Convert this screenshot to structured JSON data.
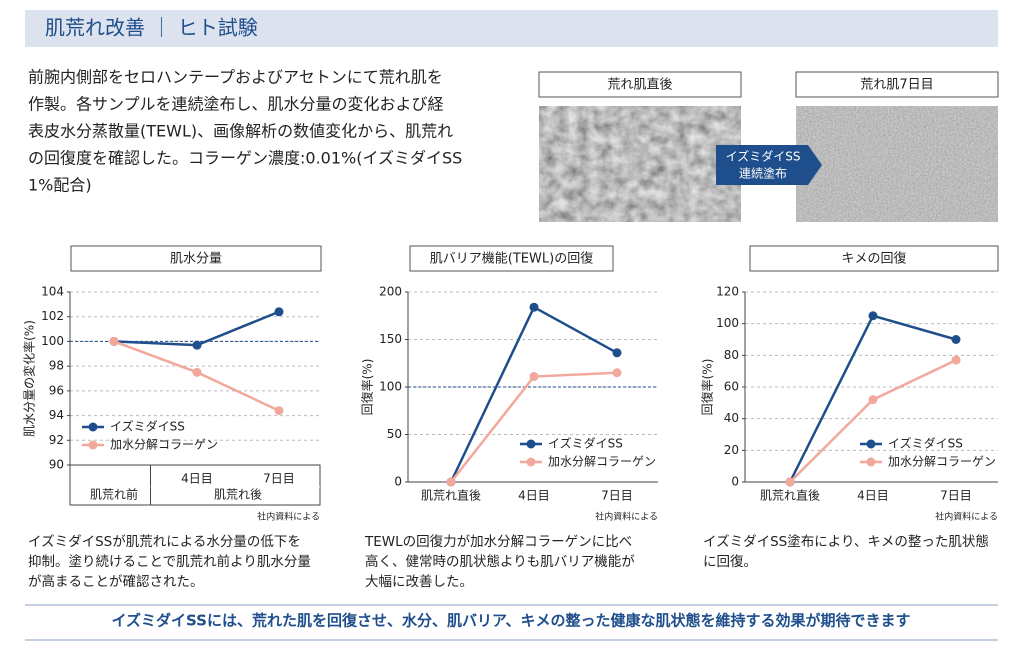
{
  "header": {
    "title": "肌荒れ改善 ｜ ヒト試験"
  },
  "intro": [
    "前腕内側部をセロハンテープおよびアセトンにて荒れ肌を",
    "作製。各サンプルを連続塗布し、肌水分量の変化および経",
    "表皮水分蒸散量(TEWL)、画像解析の数値変化から、肌荒れ",
    "の回復度を確認した。コラーゲン濃度:0.01%(イズミダイSS",
    "1%配合)"
  ],
  "images": {
    "before_label": "荒れ肌直後",
    "after_label": "荒れ肌7日目",
    "arrow": [
      "イズミダイSS",
      "連続塗布"
    ]
  },
  "chart_data": [
    {
      "type": "line",
      "title": "肌水分量",
      "ylabel": "肌水分量の変化率(%)",
      "categories": [
        "肌荒れ前",
        "4日目",
        "7日目"
      ],
      "category_group": "肌荒れ後",
      "series": [
        {
          "name": "イズミダイSS",
          "color": "#1f4e8c",
          "values": [
            100,
            99.7,
            102.4
          ]
        },
        {
          "name": "加水分解コラーゲン",
          "color": "#f2a89a",
          "values": [
            100,
            97.5,
            94.4
          ]
        }
      ],
      "ylim": [
        90,
        104
      ],
      "yticks": [
        90,
        92,
        94,
        96,
        98,
        100,
        102,
        104
      ],
      "reference_line": 100,
      "grid": true,
      "legend": "lower left",
      "note": "社内資料による",
      "caption": [
        "イズミダイSSが肌荒れによる水分量の低下を",
        "抑制。塗り続けることで肌荒れ前より肌水分量",
        "が高まることが確認された。"
      ]
    },
    {
      "type": "line",
      "title": "肌バリア機能(TEWL)の回復",
      "ylabel": "回復率(%)",
      "categories": [
        "肌荒れ直後",
        "4日目",
        "7日目"
      ],
      "series": [
        {
          "name": "イズミダイSS",
          "color": "#1f4e8c",
          "values": [
            0,
            184,
            136
          ]
        },
        {
          "name": "加水分解コラーゲン",
          "color": "#f2a89a",
          "values": [
            0,
            111,
            115
          ]
        }
      ],
      "ylim": [
        0,
        200
      ],
      "yticks": [
        0,
        50,
        100,
        150,
        200
      ],
      "reference_line": 100,
      "grid": true,
      "legend": "lower right",
      "note": "社内資料による",
      "caption": [
        "TEWLの回復力が加水分解コラーゲンに比べ",
        "高く、健常時の肌状態よりも肌バリア機能が",
        "大幅に改善した。"
      ]
    },
    {
      "type": "line",
      "title": "キメの回復",
      "ylabel": "回復率(%)",
      "categories": [
        "肌荒れ直後",
        "4日目",
        "7日目"
      ],
      "series": [
        {
          "name": "イズミダイSS",
          "color": "#1f4e8c",
          "values": [
            0,
            105,
            90
          ]
        },
        {
          "name": "加水分解コラーゲン",
          "color": "#f2a89a",
          "values": [
            0,
            52,
            77
          ]
        }
      ],
      "ylim": [
        0,
        120
      ],
      "yticks": [
        0,
        20,
        40,
        60,
        80,
        100,
        120
      ],
      "grid": true,
      "legend": "lower right",
      "note": "社内資料による",
      "caption": [
        "イズミダイSS塗布により、キメの整った肌状態",
        "に回復。"
      ]
    }
  ],
  "footer": "イズミダイSSには、荒れた肌を回復させ、水分、肌バリア、キメの整った健康な肌状態を維持する効果が期待できます"
}
